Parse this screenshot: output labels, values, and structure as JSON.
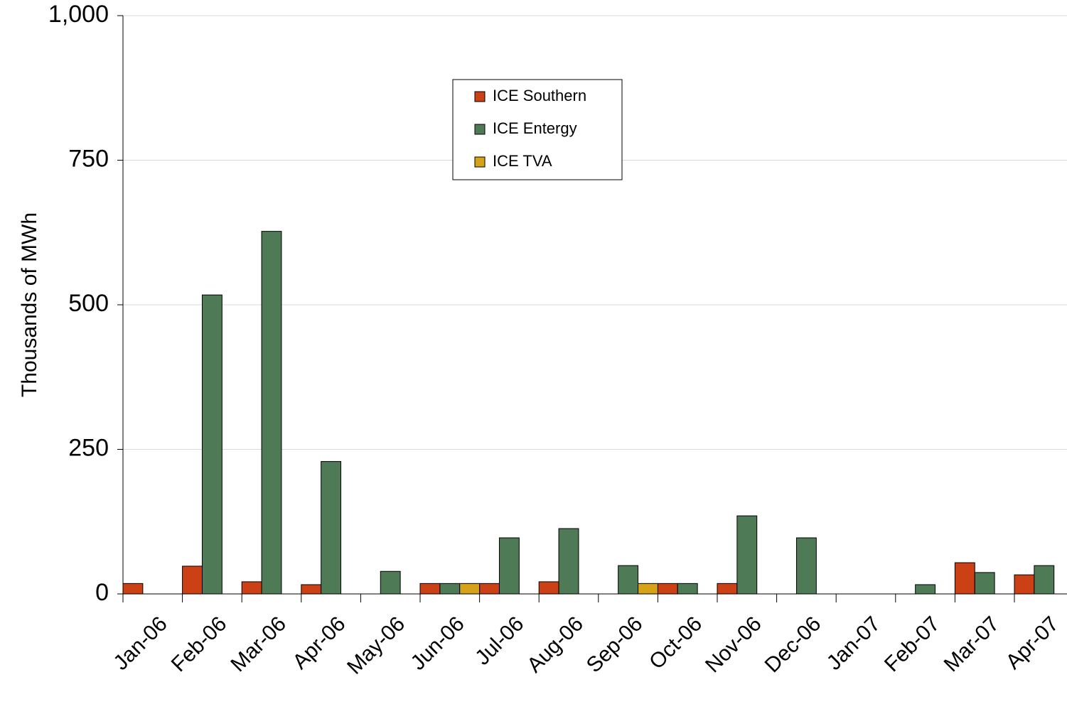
{
  "chart_data": {
    "type": "bar",
    "y_label": "Thousands of MWh",
    "categories": [
      "Jan-06",
      "Feb-06",
      "Mar-06",
      "Apr-06",
      "May-06",
      "Jun-06",
      "Jul-06",
      "Aug-06",
      "Sep-06",
      "Oct-06",
      "Nov-06",
      "Dec-06",
      "Jan-07",
      "Feb-07",
      "Mar-07",
      "Apr-07"
    ],
    "series": [
      {
        "name": "ICE Southern",
        "color": "#cc4015",
        "values": [
          18,
          48,
          21,
          16,
          null,
          18,
          18,
          21,
          null,
          18,
          18,
          null,
          null,
          null,
          54,
          33
        ]
      },
      {
        "name": "ICE Entergy",
        "color": "#4e7a55",
        "values": [
          null,
          517,
          627,
          229,
          39,
          18,
          97,
          113,
          49,
          18,
          135,
          97,
          null,
          16,
          37,
          49
        ]
      },
      {
        "name": "ICE TVA",
        "color": "#d6a318",
        "values": [
          null,
          null,
          null,
          null,
          null,
          18,
          null,
          null,
          18,
          null,
          null,
          null,
          null,
          null,
          null,
          null
        ]
      }
    ],
    "ylim": [
      0,
      1000
    ],
    "yticks": [
      0,
      250,
      500,
      750,
      {
        "value": 1000,
        "label": "1,000"
      }
    ],
    "grid": true
  }
}
